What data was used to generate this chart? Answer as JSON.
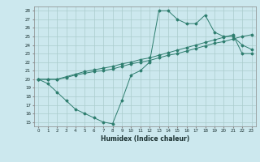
{
  "title": "",
  "xlabel": "Humidex (Indice chaleur)",
  "ylabel": "",
  "bg_color": "#cce8ee",
  "grid_color": "#aacccc",
  "line_color": "#2d7d6e",
  "xlim": [
    -0.5,
    23.5
  ],
  "ylim": [
    14.5,
    28.5
  ],
  "xticks": [
    0,
    1,
    2,
    3,
    4,
    5,
    6,
    7,
    8,
    9,
    10,
    11,
    12,
    13,
    14,
    15,
    16,
    17,
    18,
    19,
    20,
    21,
    22,
    23
  ],
  "yticks": [
    15,
    16,
    17,
    18,
    19,
    20,
    21,
    22,
    23,
    24,
    25,
    26,
    27,
    28
  ],
  "line1_x": [
    0,
    1,
    2,
    3,
    4,
    5,
    6,
    7,
    8,
    9,
    10,
    11,
    12,
    13,
    14,
    15,
    16,
    17,
    18,
    19,
    20,
    21,
    22,
    23
  ],
  "line1_y": [
    20.0,
    19.5,
    18.5,
    17.5,
    16.5,
    16.0,
    15.5,
    15.0,
    14.8,
    17.5,
    20.5,
    21.0,
    22.0,
    28.0,
    28.0,
    27.0,
    26.5,
    26.5,
    27.5,
    25.5,
    25.0,
    25.0,
    24.0,
    23.5
  ],
  "line2_x": [
    0,
    1,
    2,
    3,
    4,
    5,
    6,
    7,
    8,
    9,
    10,
    11,
    12,
    13,
    14,
    15,
    16,
    17,
    18,
    19,
    20,
    21,
    22,
    23
  ],
  "line2_y": [
    20.0,
    20.0,
    20.0,
    20.2,
    20.5,
    20.7,
    20.9,
    21.0,
    21.2,
    21.5,
    21.8,
    22.0,
    22.2,
    22.5,
    22.8,
    23.0,
    23.3,
    23.6,
    23.9,
    24.2,
    24.4,
    24.7,
    25.0,
    25.2
  ],
  "line3_x": [
    0,
    1,
    2,
    3,
    4,
    5,
    6,
    7,
    8,
    9,
    10,
    11,
    12,
    13,
    14,
    15,
    16,
    17,
    18,
    19,
    20,
    21,
    22,
    23
  ],
  "line3_y": [
    20.0,
    20.0,
    20.0,
    20.3,
    20.6,
    20.9,
    21.1,
    21.3,
    21.5,
    21.8,
    22.0,
    22.3,
    22.5,
    22.8,
    23.1,
    23.4,
    23.7,
    24.0,
    24.3,
    24.6,
    24.9,
    25.2,
    23.0,
    23.0
  ]
}
